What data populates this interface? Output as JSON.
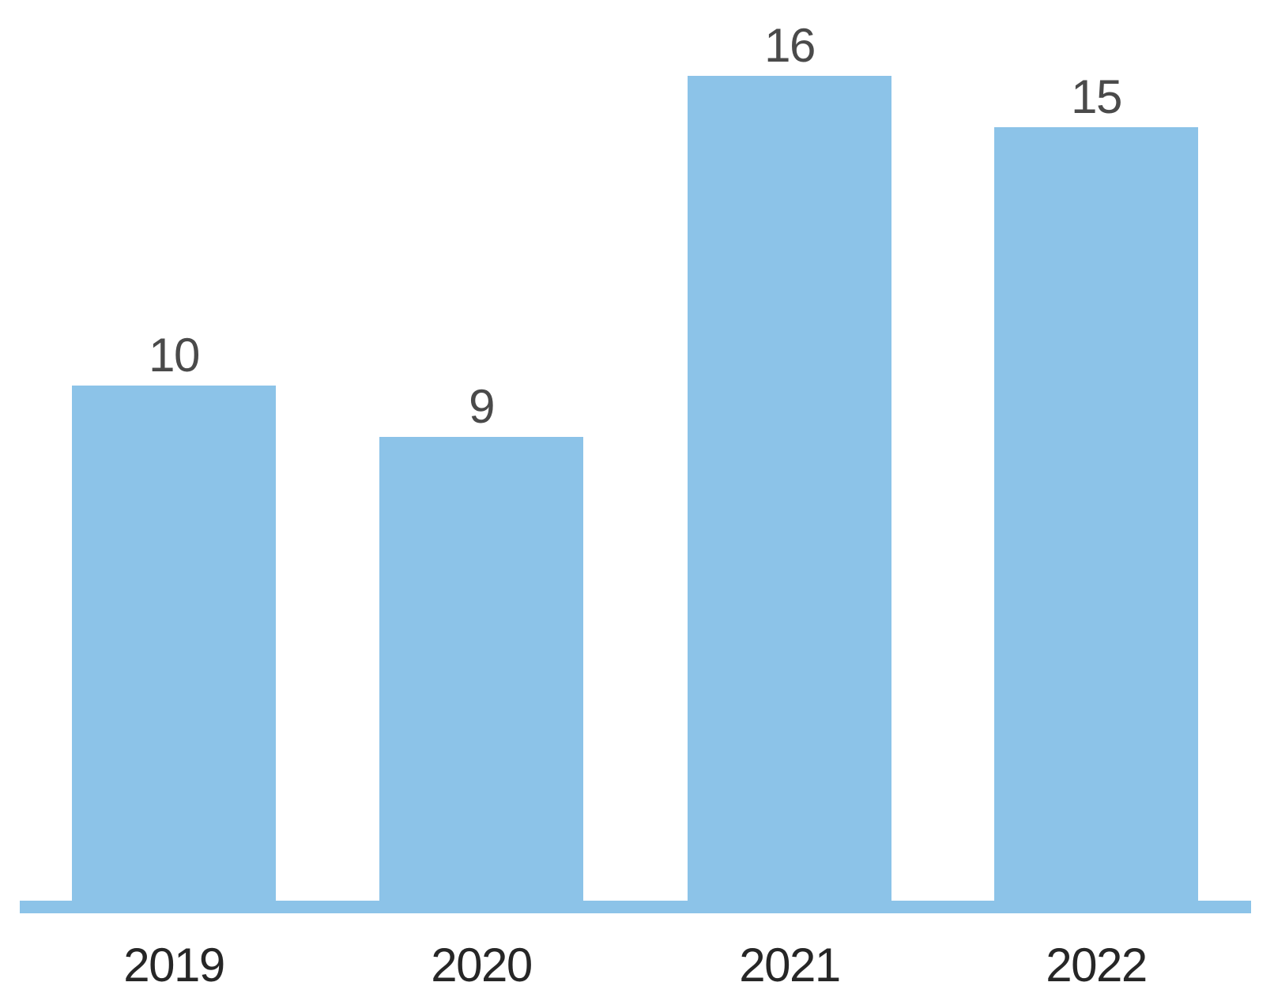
{
  "chart_data": {
    "type": "bar",
    "title": "",
    "xlabel": "",
    "ylabel": "",
    "categories": [
      "2019",
      "2020",
      "2021",
      "2022"
    ],
    "values": [
      10,
      9,
      16,
      15
    ],
    "data_labels": [
      "10",
      "9",
      "16",
      "15"
    ],
    "ylim": [
      0,
      16
    ],
    "gridlines": false,
    "y_axis_visible": false,
    "x_axis_line_visible": true,
    "legend": "none",
    "background_color": "#ffffff",
    "bar_color": "#8CC3E8",
    "axis_line_color": "#8CC3E8",
    "value_label_color": "#4a4a4a",
    "category_label_color": "#262626"
  }
}
